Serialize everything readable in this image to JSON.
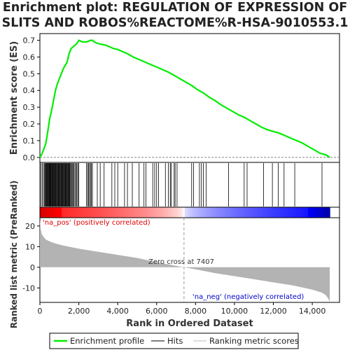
{
  "chart_data": {
    "type": "line",
    "title": "Enrichment plot: REGULATION OF EXPRESSION OF SLITS AND ROBOS%REACTOME%R-HSA-9010553.1",
    "title_lines": [
      "Enrichment plot: REGULATION OF EXPRESSION OF",
      "SLITS AND ROBOS%REACTOME%R-HSA-9010553.1"
    ],
    "xlabel": "Rank in Ordered Dataset",
    "top_panel": {
      "ylabel": "Enrichment score (ES)",
      "ylim": [
        -0.03,
        0.74
      ],
      "yticks": [
        0.0,
        0.1,
        0.2,
        0.3,
        0.4,
        0.5,
        0.6,
        0.7
      ],
      "ytick_labels": [
        "0.0",
        "0.1",
        "0.2",
        "0.3",
        "0.4",
        "0.5",
        "0.6",
        "0.7"
      ],
      "series": [
        {
          "name": "Enrichment profile",
          "color": "#00ee00",
          "x": [
            0,
            100,
            200,
            300,
            400,
            500,
            600,
            700,
            800,
            900,
            1000,
            1100,
            1200,
            1300,
            1400,
            1500,
            1600,
            1700,
            1800,
            1900,
            2000,
            2100,
            2200,
            2300,
            2400,
            2500,
            2600,
            2700,
            2800,
            2900,
            3000,
            3200,
            3400,
            3600,
            3800,
            4000,
            4200,
            4500,
            4800,
            5100,
            5400,
            5700,
            6000,
            6300,
            6600,
            6900,
            7200,
            7500,
            7800,
            8100,
            8400,
            8700,
            9000,
            9300,
            9600,
            9900,
            10200,
            10500,
            10800,
            11100,
            11400,
            11700,
            12000,
            12300,
            12600,
            12900,
            13200,
            13500,
            13800,
            14100,
            14400,
            14700,
            14900
          ],
          "y": [
            0.0,
            0.02,
            0.05,
            0.08,
            0.15,
            0.23,
            0.28,
            0.34,
            0.4,
            0.44,
            0.47,
            0.5,
            0.53,
            0.55,
            0.57,
            0.62,
            0.65,
            0.66,
            0.67,
            0.68,
            0.7,
            0.695,
            0.69,
            0.69,
            0.69,
            0.695,
            0.7,
            0.7,
            0.69,
            0.685,
            0.68,
            0.675,
            0.67,
            0.66,
            0.65,
            0.645,
            0.635,
            0.62,
            0.6,
            0.585,
            0.57,
            0.555,
            0.54,
            0.525,
            0.51,
            0.49,
            0.47,
            0.45,
            0.43,
            0.405,
            0.385,
            0.36,
            0.34,
            0.315,
            0.295,
            0.275,
            0.255,
            0.24,
            0.22,
            0.2,
            0.18,
            0.165,
            0.155,
            0.145,
            0.13,
            0.115,
            0.1,
            0.085,
            0.065,
            0.045,
            0.025,
            0.015,
            0.0
          ]
        }
      ]
    },
    "hits": [
      50,
      120,
      180,
      230,
      270,
      300,
      330,
      360,
      390,
      420,
      450,
      470,
      500,
      520,
      540,
      560,
      590,
      620,
      650,
      680,
      700,
      730,
      760,
      790,
      820,
      850,
      880,
      910,
      940,
      970,
      1000,
      1030,
      1060,
      1090,
      1120,
      1150,
      1180,
      1210,
      1240,
      1270,
      1300,
      1330,
      1360,
      1390,
      1420,
      1450,
      1480,
      1510,
      1540,
      1580,
      1620,
      1660,
      1700,
      1750,
      1800,
      1850,
      1900,
      1950,
      2000,
      2400,
      2450,
      2500,
      2550,
      2600,
      2650,
      2700,
      2950,
      3100,
      3300,
      3700,
      3850,
      4000,
      4350,
      4500,
      4750,
      5100,
      5350,
      5450,
      5800,
      5900,
      6000,
      6100,
      6450,
      6600,
      6700,
      6750,
      6900,
      6950,
      7050,
      7800,
      7900,
      8200,
      8300,
      8400,
      8550,
      9700,
      10500,
      10650,
      11500,
      11950,
      12250,
      12550,
      13100,
      14500
    ],
    "metric_panel": {
      "ylabel": "Ranked list metric (PreRanked)",
      "ylim": [
        -17,
        24
      ],
      "yticks": [
        -10,
        0,
        10,
        20
      ],
      "ytick_labels": [
        "-10",
        "0",
        "10",
        "20"
      ],
      "x": [
        0,
        50,
        100,
        200,
        300,
        500,
        800,
        1200,
        2000,
        3000,
        4000,
        5000,
        6000,
        7000,
        7407,
        8000,
        9000,
        10000,
        11000,
        12000,
        13000,
        14000,
        14500,
        14700,
        14850,
        14900
      ],
      "y": [
        23,
        18,
        16,
        14.5,
        13.5,
        12.5,
        11.5,
        10.5,
        9,
        7.5,
        6,
        4.5,
        2.5,
        0.7,
        0,
        -1,
        -2.8,
        -4.3,
        -5.8,
        -7.3,
        -8.8,
        -10.8,
        -12.3,
        -13.5,
        -15.5,
        -17
      ],
      "annotations": [
        "'na_pos' (positively correlated)",
        "Zero cross at 7407",
        "'na_neg' (negatively correlated)"
      ],
      "zero_cross": 7407
    },
    "xlim": [
      0,
      15400
    ],
    "xticks": [
      0,
      2000,
      4000,
      6000,
      8000,
      10000,
      12000,
      14000
    ],
    "xtick_labels": [
      "0",
      "2,000",
      "4,000",
      "6,000",
      "8,000",
      "10,000",
      "12,000",
      "14,000"
    ],
    "legend": {
      "placement": "bottom",
      "entries": [
        "Enrichment profile",
        "Hits",
        "Ranking metric scores"
      ]
    }
  }
}
